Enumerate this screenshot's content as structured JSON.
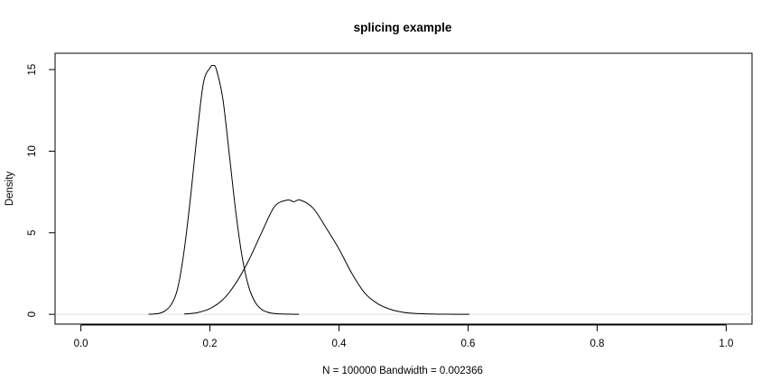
{
  "chart_data": {
    "type": "line",
    "title": "splicing example",
    "xlabel": "N = 100000   Bandwidth = 0.002366",
    "ylabel": "Density",
    "xlim": [
      -0.04,
      1.04
    ],
    "ylim": [
      -0.6,
      16
    ],
    "xticks": [
      0.0,
      0.2,
      0.4,
      0.6,
      0.8,
      1.0
    ],
    "xtick_labels": [
      "0.0",
      "0.2",
      "0.4",
      "0.6",
      "0.8",
      "1.0"
    ],
    "yticks": [
      0,
      5,
      10,
      15
    ],
    "ytick_labels": [
      "0",
      "5",
      "10",
      "15"
    ],
    "grid": false,
    "line_color": "#000000",
    "reference_line_color": "#e0e0e0",
    "series": [
      {
        "x": [
          0.105,
          0.12,
          0.13,
          0.14,
          0.15,
          0.16,
          0.17,
          0.18,
          0.19,
          0.2,
          0.205,
          0.21,
          0.22,
          0.23,
          0.24,
          0.25,
          0.26,
          0.27,
          0.28,
          0.29,
          0.3,
          0.31,
          0.338
        ],
        "y": [
          0,
          0.05,
          0.2,
          0.6,
          1.6,
          3.9,
          7.2,
          11.0,
          14.2,
          15.1,
          15.25,
          15.0,
          13.2,
          9.8,
          6.3,
          3.5,
          1.7,
          0.75,
          0.3,
          0.12,
          0.05,
          0.02,
          0
        ]
      },
      {
        "x": [
          0.16,
          0.18,
          0.2,
          0.22,
          0.24,
          0.26,
          0.28,
          0.3,
          0.32,
          0.33,
          0.34,
          0.36,
          0.38,
          0.4,
          0.42,
          0.44,
          0.46,
          0.48,
          0.5,
          0.52,
          0.54,
          0.56,
          0.58,
          0.602
        ],
        "y": [
          0.02,
          0.1,
          0.35,
          0.9,
          1.9,
          3.3,
          5.0,
          6.6,
          7.0,
          6.9,
          7.0,
          6.5,
          5.3,
          4.0,
          2.5,
          1.3,
          0.65,
          0.3,
          0.12,
          0.05,
          0.02,
          0.01,
          0.005,
          0
        ]
      }
    ]
  }
}
